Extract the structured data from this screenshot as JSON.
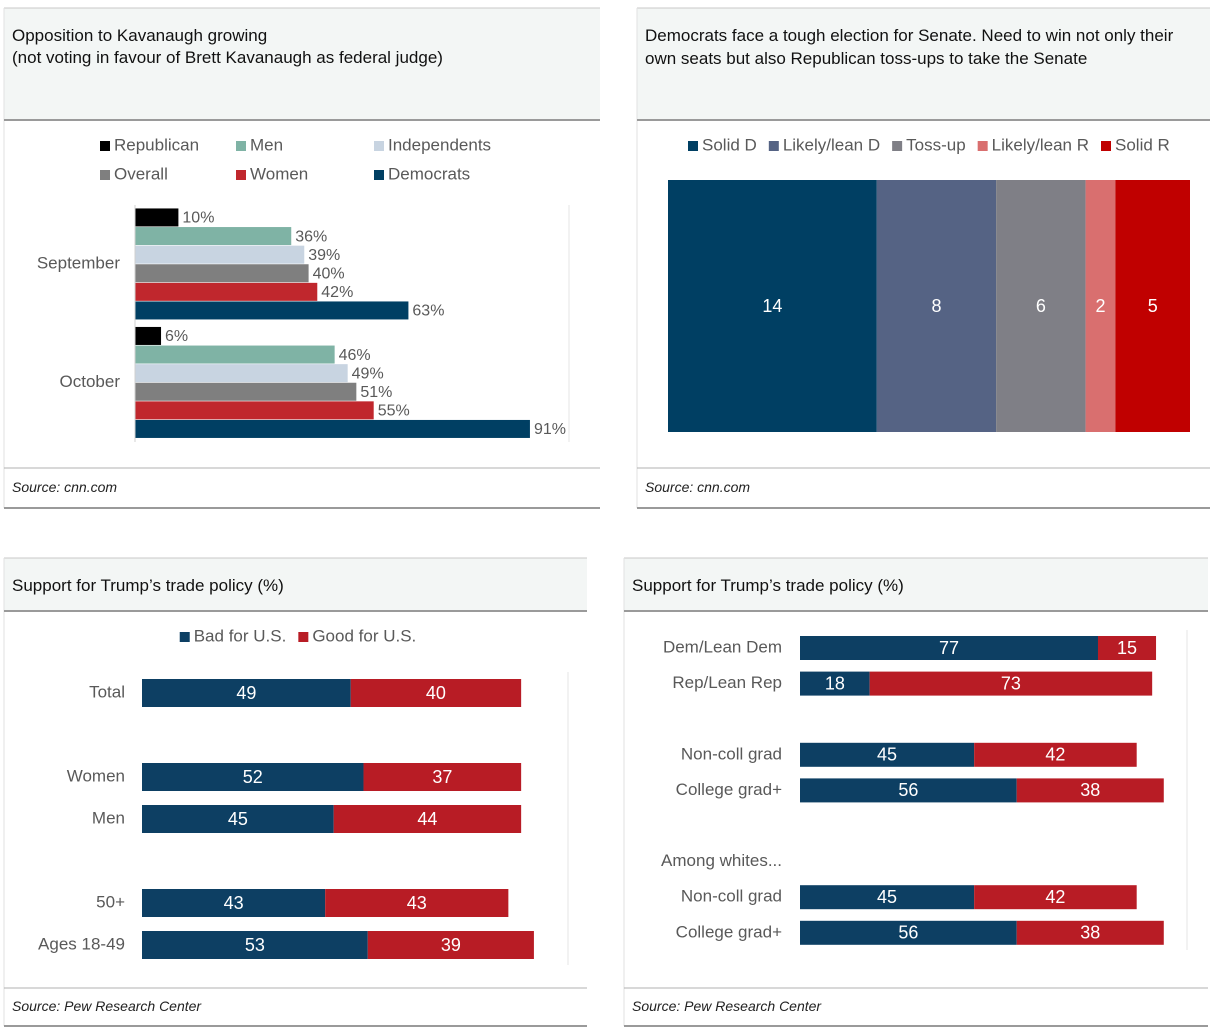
{
  "chart_data": [
    {
      "type": "bar",
      "orientation": "horizontal",
      "stacked": false,
      "title": "Opposition to Kavanaugh growing",
      "subtitle": "(not voting in favour of Brett Kavanaugh as federal judge)",
      "source": "Source: cnn.com",
      "categories": [
        "September",
        "October"
      ],
      "series": [
        {
          "name": "Republican",
          "color": "#000000",
          "values": [
            10,
            6
          ],
          "value_labels": [
            "10%",
            "6%"
          ]
        },
        {
          "name": "Men",
          "color": "#7fb3a5",
          "values": [
            36,
            46
          ],
          "value_labels": [
            "36%",
            "46%"
          ]
        },
        {
          "name": "Independents",
          "color": "#c8d4e1",
          "values": [
            39,
            49
          ],
          "value_labels": [
            "39%",
            "49%"
          ]
        },
        {
          "name": "Overall",
          "color": "#7f7f7f",
          "values": [
            40,
            51
          ],
          "value_labels": [
            "40%",
            "51%"
          ]
        },
        {
          "name": "Women",
          "color": "#c0272d",
          "values": [
            42,
            55
          ],
          "value_labels": [
            "42%",
            "55%"
          ]
        },
        {
          "name": "Democrats",
          "color": "#003f63",
          "values": [
            63,
            91
          ],
          "value_labels": [
            "63%",
            "91%"
          ]
        }
      ],
      "xlim": [
        0,
        100
      ],
      "legend": "top"
    },
    {
      "type": "bar",
      "orientation": "horizontal",
      "stacked": true,
      "title": "Democrats face a tough election for Senate. Need to win not only their own seats but also Republican toss-ups to take the Senate",
      "source": "Source: cnn.com",
      "categories": [
        null
      ],
      "series": [
        {
          "name": "Solid D",
          "color": "#003f63",
          "values": [
            14
          ]
        },
        {
          "name": "Likely/lean D",
          "color": "#556384",
          "values": [
            8
          ]
        },
        {
          "name": "Toss-up",
          "color": "#7f7f86",
          "values": [
            6
          ]
        },
        {
          "name": "Likely/lean R",
          "color": "#d96f6f",
          "values": [
            2
          ]
        },
        {
          "name": "Solid R",
          "color": "#c00000",
          "values": [
            5
          ]
        }
      ],
      "xlim": [
        0,
        35
      ],
      "legend": "top"
    },
    {
      "type": "bar",
      "orientation": "horizontal",
      "stacked": true,
      "title": "Support for Trump’s trade policy (%)",
      "source": "Source: Pew Research Center",
      "categories": [
        "Total",
        null,
        "Women",
        "Men",
        null,
        "50+",
        "Ages 18-49"
      ],
      "series": [
        {
          "name": "Bad for U.S.",
          "color": "#0d3f63",
          "values": [
            49,
            null,
            52,
            45,
            null,
            43,
            53
          ]
        },
        {
          "name": "Good for U.S.",
          "color": "#b81c25",
          "values": [
            40,
            null,
            37,
            44,
            null,
            43,
            39
          ]
        }
      ],
      "xlim": [
        0,
        100
      ],
      "legend": "top"
    },
    {
      "type": "bar",
      "orientation": "horizontal",
      "stacked": true,
      "title": "Support for Trump’s trade policy (%)",
      "source": "Source: Pew Research Center",
      "categories": [
        "Dem/Lean Dem",
        "Rep/Lean Rep",
        null,
        "Non-coll grad",
        "College grad+",
        null,
        "Among whites...",
        "Non-coll grad",
        "College grad+"
      ],
      "series": [
        {
          "color": "#0d3f63",
          "values": [
            77,
            18,
            null,
            45,
            56,
            null,
            null,
            45,
            56
          ]
        },
        {
          "color": "#b81c25",
          "values": [
            15,
            73,
            null,
            42,
            38,
            null,
            null,
            42,
            38
          ]
        }
      ],
      "xlim": [
        0,
        100
      ]
    }
  ]
}
